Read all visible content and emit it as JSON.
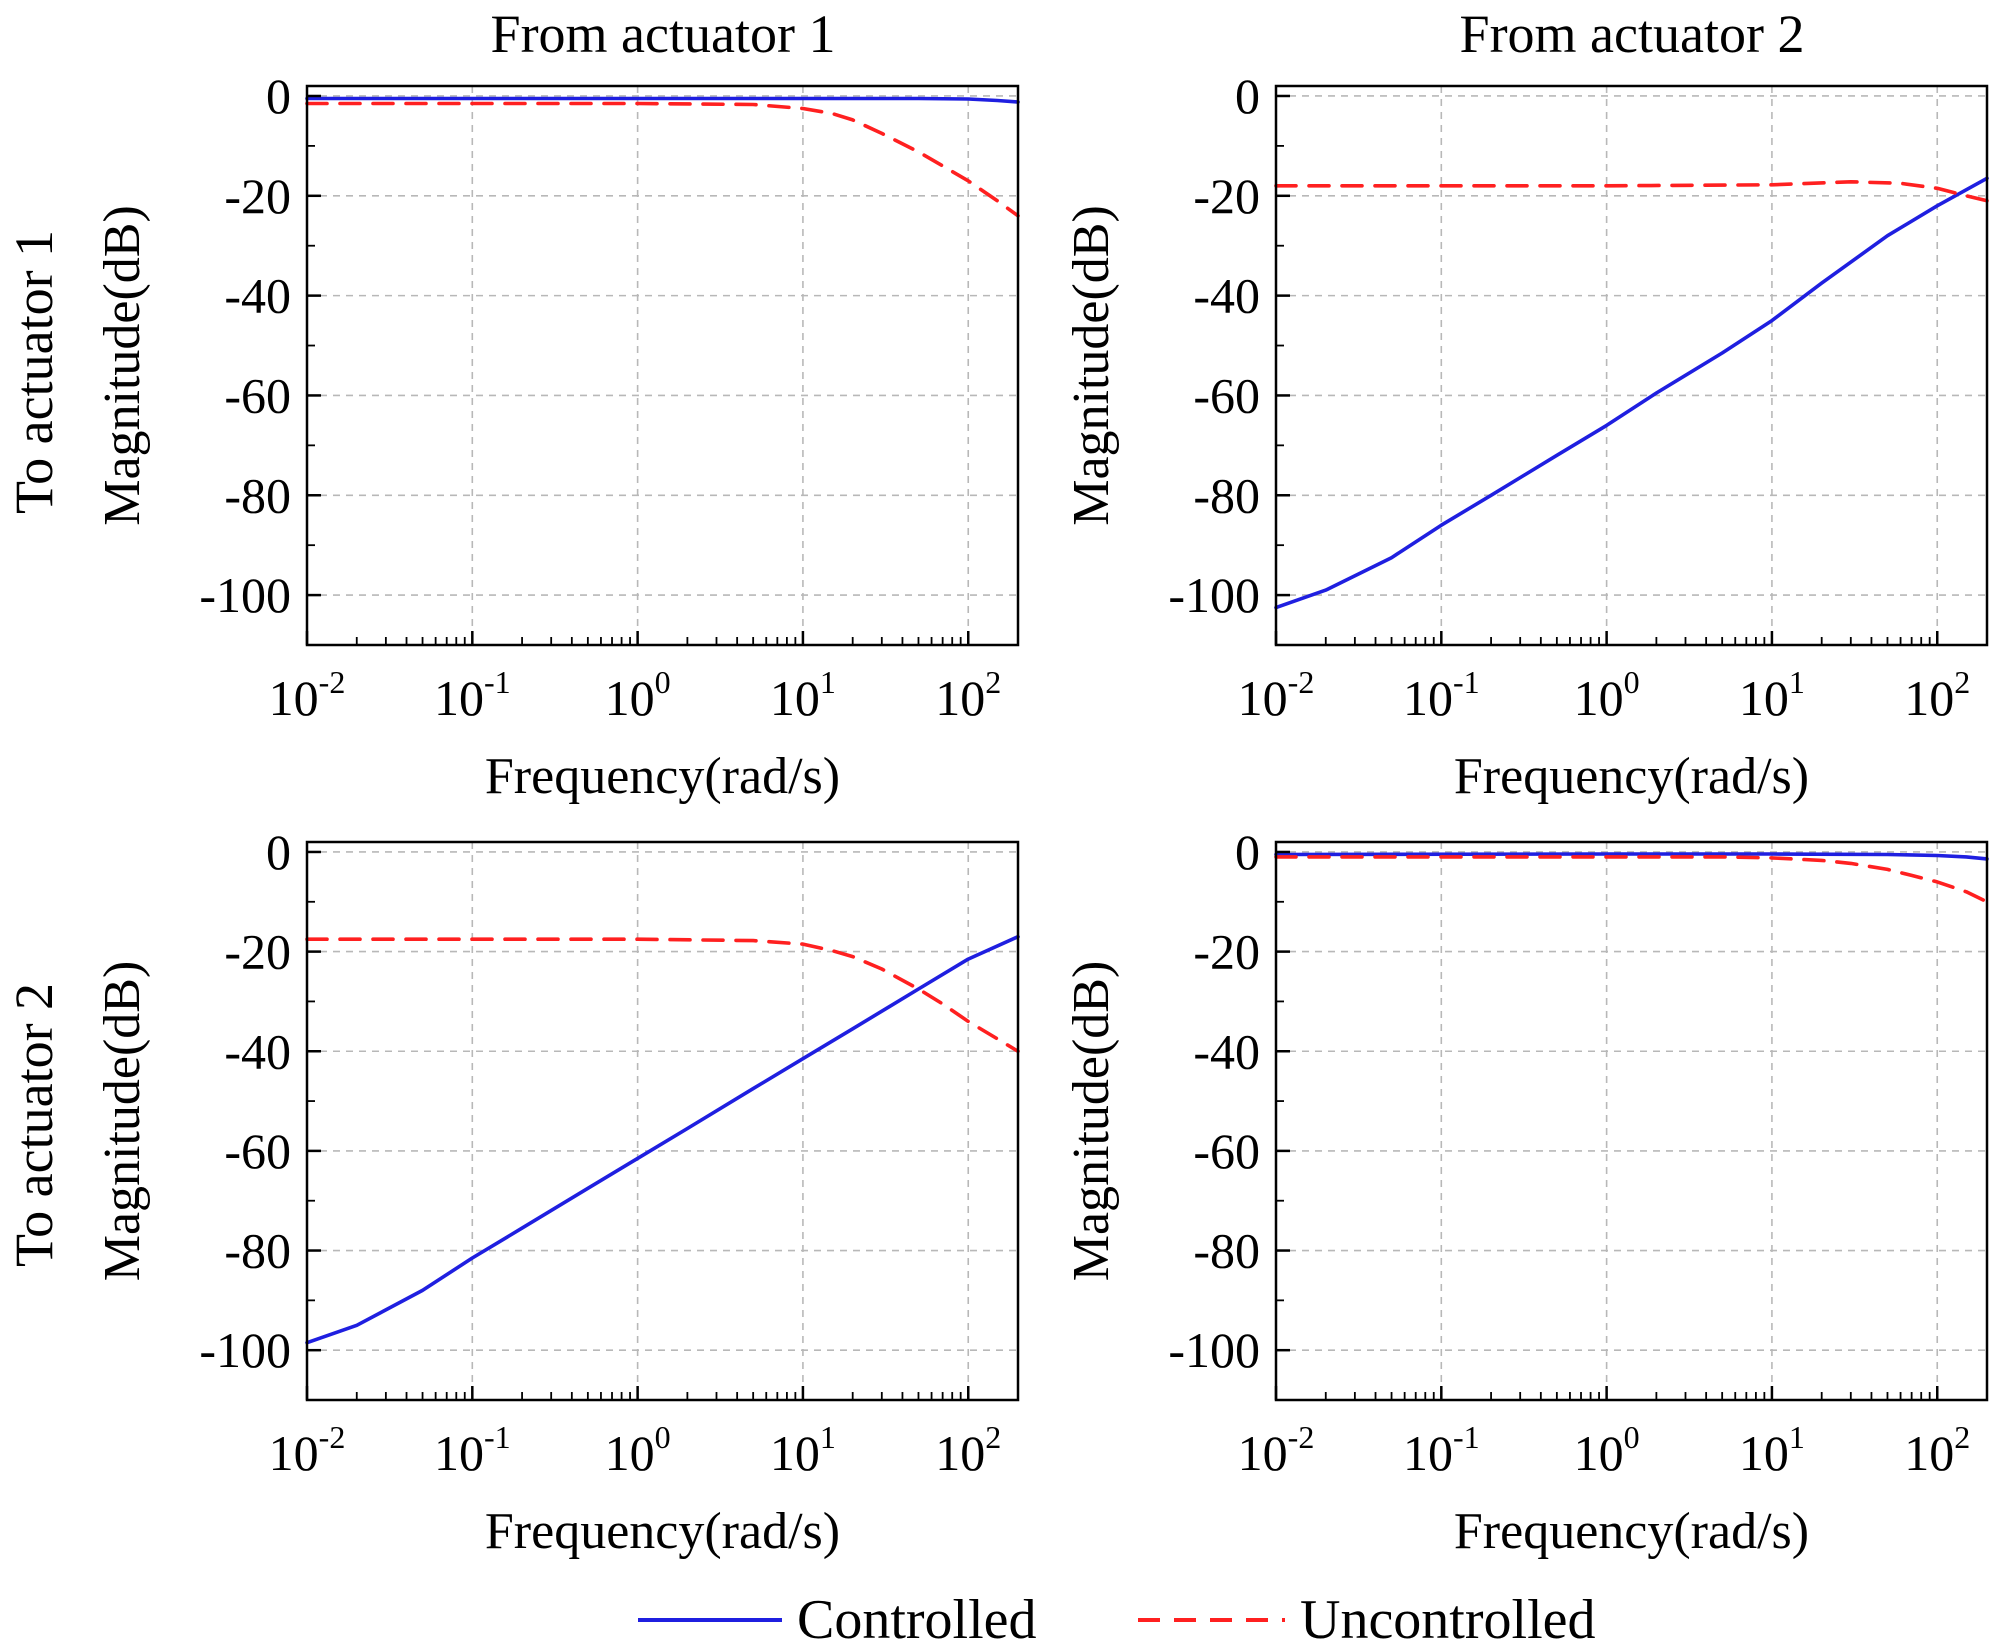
{
  "figure": {
    "column_titles": [
      "From actuator 1",
      "From actuator 2"
    ],
    "row_titles": [
      "To actuator 1",
      "To actuator 2"
    ]
  },
  "legend": {
    "position": "bottom-center",
    "entries": [
      {
        "label": "Controlled",
        "color": "#1f1fe0",
        "style": "solid"
      },
      {
        "label": "Uncontrolled",
        "color": "#ff2020",
        "style": "dashed"
      }
    ]
  },
  "chart_data": [
    {
      "type": "line",
      "panel": "top-left",
      "xlabel": "Frequency(rad/s)",
      "ylabel": "Magnitude(dB)",
      "xscale": "log",
      "xlim": [
        0.01,
        200
      ],
      "ylim": [
        -110,
        2
      ],
      "xticks": [
        {
          "value": 0.01,
          "base": "10",
          "exp": "-2"
        },
        {
          "value": 0.1,
          "base": "10",
          "exp": "-1"
        },
        {
          "value": 1,
          "base": "10",
          "exp": "0"
        },
        {
          "value": 10,
          "base": "10",
          "exp": "1"
        },
        {
          "value": 100,
          "base": "10",
          "exp": "2"
        }
      ],
      "yticks": [
        0,
        -20,
        -40,
        -60,
        -80,
        -100
      ],
      "grid": true,
      "series": [
        {
          "name": "Controlled",
          "color": "#1f1fe0",
          "style": "solid",
          "x": [
            0.01,
            1,
            10,
            50,
            100,
            150,
            200
          ],
          "y": [
            -0.5,
            -0.5,
            -0.5,
            -0.5,
            -0.6,
            -0.9,
            -1.2
          ]
        },
        {
          "name": "Uncontrolled",
          "color": "#ff2020",
          "style": "dashed",
          "x": [
            0.01,
            0.1,
            1,
            5,
            10,
            15,
            20,
            30,
            50,
            70,
            100,
            150,
            200
          ],
          "y": [
            -1.5,
            -1.5,
            -1.5,
            -1.7,
            -2.5,
            -3.5,
            -4.8,
            -7.5,
            -11.2,
            -14,
            -17,
            -21,
            -24
          ]
        }
      ]
    },
    {
      "type": "line",
      "panel": "top-right",
      "xlabel": "Frequency(rad/s)",
      "ylabel": "Magnitude(dB)",
      "xscale": "log",
      "xlim": [
        0.01,
        200
      ],
      "ylim": [
        -110,
        2
      ],
      "xticks": [
        {
          "value": 0.01,
          "base": "10",
          "exp": "-2"
        },
        {
          "value": 0.1,
          "base": "10",
          "exp": "-1"
        },
        {
          "value": 1,
          "base": "10",
          "exp": "0"
        },
        {
          "value": 10,
          "base": "10",
          "exp": "1"
        },
        {
          "value": 100,
          "base": "10",
          "exp": "2"
        }
      ],
      "yticks": [
        0,
        -20,
        -40,
        -60,
        -80,
        -100
      ],
      "grid": true,
      "series": [
        {
          "name": "Controlled",
          "color": "#1f1fe0",
          "style": "solid",
          "x": [
            0.01,
            0.02,
            0.05,
            0.1,
            0.2,
            0.5,
            1,
            2,
            5,
            10,
            20,
            50,
            100,
            200
          ],
          "y": [
            -102.5,
            -99,
            -92.5,
            -86,
            -80,
            -72,
            -66,
            -59.5,
            -51.5,
            -45,
            -37.5,
            -28,
            -22,
            -16.5
          ]
        },
        {
          "name": "Uncontrolled",
          "color": "#ff2020",
          "style": "dashed",
          "x": [
            0.01,
            0.1,
            1,
            10,
            30,
            60,
            100,
            150,
            200
          ],
          "y": [
            -18,
            -18,
            -18,
            -17.8,
            -17.2,
            -17.5,
            -18.5,
            -20,
            -21
          ]
        }
      ]
    },
    {
      "type": "line",
      "panel": "bottom-left",
      "xlabel": "Frequency(rad/s)",
      "ylabel": "Magnitude(dB)",
      "xscale": "log",
      "xlim": [
        0.01,
        200
      ],
      "ylim": [
        -110,
        2
      ],
      "xticks": [
        {
          "value": 0.01,
          "base": "10",
          "exp": "-2"
        },
        {
          "value": 0.1,
          "base": "10",
          "exp": "-1"
        },
        {
          "value": 1,
          "base": "10",
          "exp": "0"
        },
        {
          "value": 10,
          "base": "10",
          "exp": "1"
        },
        {
          "value": 100,
          "base": "10",
          "exp": "2"
        }
      ],
      "yticks": [
        0,
        -20,
        -40,
        -60,
        -80,
        -100
      ],
      "grid": true,
      "series": [
        {
          "name": "Controlled",
          "color": "#1f1fe0",
          "style": "solid",
          "x": [
            0.01,
            0.02,
            0.05,
            0.1,
            0.2,
            0.5,
            1,
            2,
            5,
            10,
            20,
            50,
            100,
            200
          ],
          "y": [
            -98.5,
            -95,
            -88,
            -81.5,
            -75.5,
            -67.5,
            -61.5,
            -55.5,
            -47.5,
            -41.5,
            -35.5,
            -27.5,
            -21.5,
            -17
          ]
        },
        {
          "name": "Uncontrolled",
          "color": "#ff2020",
          "style": "dashed",
          "x": [
            0.01,
            0.1,
            1,
            5,
            10,
            15,
            20,
            30,
            50,
            70,
            100,
            150,
            200
          ],
          "y": [
            -17.5,
            -17.5,
            -17.5,
            -17.8,
            -18.5,
            -19.8,
            -21,
            -23.5,
            -27.5,
            -30.5,
            -34,
            -37.5,
            -40
          ]
        }
      ]
    },
    {
      "type": "line",
      "panel": "bottom-right",
      "xlabel": "Frequency(rad/s)",
      "ylabel": "Magnitude(dB)",
      "xscale": "log",
      "xlim": [
        0.01,
        200
      ],
      "ylim": [
        -110,
        2
      ],
      "xticks": [
        {
          "value": 0.01,
          "base": "10",
          "exp": "-2"
        },
        {
          "value": 0.1,
          "base": "10",
          "exp": "-1"
        },
        {
          "value": 1,
          "base": "10",
          "exp": "0"
        },
        {
          "value": 10,
          "base": "10",
          "exp": "1"
        },
        {
          "value": 100,
          "base": "10",
          "exp": "2"
        }
      ],
      "yticks": [
        0,
        -20,
        -40,
        -60,
        -80,
        -100
      ],
      "grid": true,
      "series": [
        {
          "name": "Controlled",
          "color": "#1f1fe0",
          "style": "solid",
          "x": [
            0.01,
            1,
            10,
            50,
            100,
            150,
            200
          ],
          "y": [
            -0.5,
            -0.4,
            -0.4,
            -0.5,
            -0.7,
            -1.0,
            -1.4
          ]
        },
        {
          "name": "Uncontrolled",
          "color": "#ff2020",
          "style": "dashed",
          "x": [
            0.01,
            0.1,
            1,
            5,
            10,
            20,
            30,
            50,
            70,
            100,
            150,
            200
          ],
          "y": [
            -1.0,
            -1.0,
            -1.0,
            -1.0,
            -1.2,
            -1.7,
            -2.3,
            -3.5,
            -4.7,
            -6.0,
            -8.0,
            -10.0
          ]
        }
      ]
    }
  ]
}
